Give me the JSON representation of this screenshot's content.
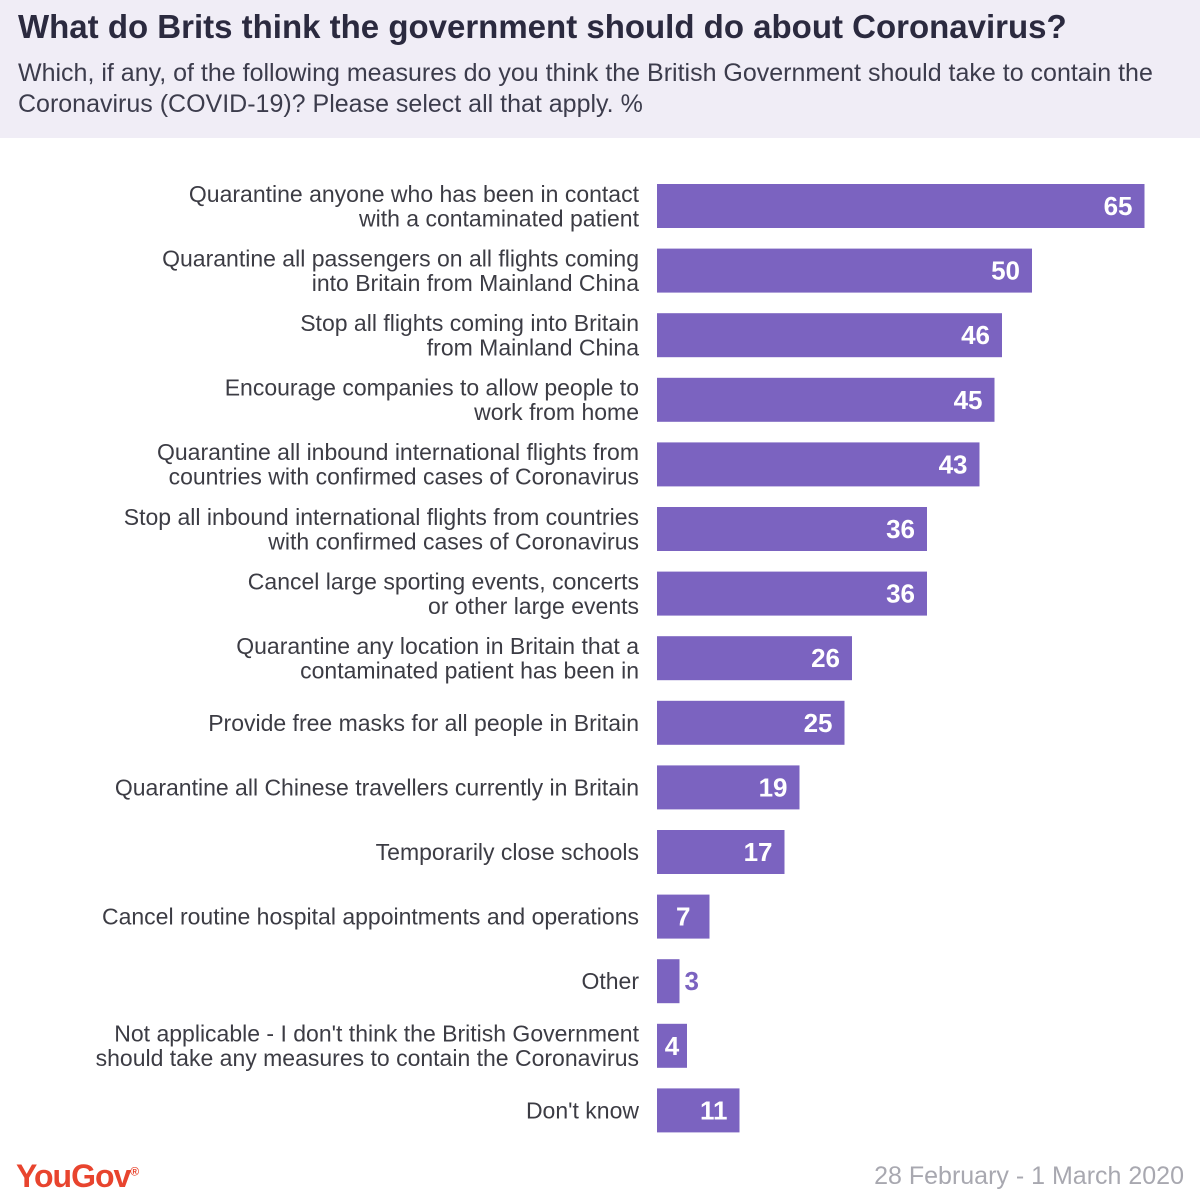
{
  "header": {
    "title": "What do Brits think the government should do about Coronavirus?",
    "subtitle": "Which, if any, of the following measures do you think the British Government should take to contain the Coronavirus (COVID-19)? Please select all that apply. %"
  },
  "footer": {
    "logo": "YouGov",
    "date": "28 February - 1 March 2020"
  },
  "colors": {
    "bar": "#7b63c0",
    "label_inside": "#ffffff",
    "label_outside": "#7b63c0",
    "header_bg": "#f0edf6"
  },
  "chart_data": {
    "type": "bar",
    "orientation": "horizontal",
    "categories": [
      [
        "Quarantine anyone who has been in contact",
        "with a contaminated patient"
      ],
      [
        "Quarantine all passengers on all flights coming",
        "into Britain from Mainland China"
      ],
      [
        "Stop all flights coming into Britain",
        "from Mainland China"
      ],
      [
        "Encourage companies to allow people to",
        "work from home"
      ],
      [
        "Quarantine all inbound international flights from",
        "countries with confirmed cases of Coronavirus"
      ],
      [
        "Stop all inbound international flights from countries",
        "with confirmed cases of Coronavirus"
      ],
      [
        "Cancel large sporting events, concerts",
        "or other large events"
      ],
      [
        "Quarantine any location in Britain that a",
        "contaminated patient has been in"
      ],
      [
        "Provide free masks for all people in Britain"
      ],
      [
        "Quarantine all Chinese travellers currently in Britain"
      ],
      [
        "Temporarily close schools"
      ],
      [
        "Cancel routine hospital appointments and operations"
      ],
      [
        "Other"
      ],
      [
        "Not applicable - I don't think the British Government",
        "should take any measures to contain the Coronavirus"
      ],
      [
        "Don't know"
      ]
    ],
    "values": [
      65,
      50,
      46,
      45,
      43,
      36,
      36,
      26,
      25,
      19,
      17,
      7,
      3,
      4,
      11
    ],
    "xlim": [
      0,
      65
    ],
    "grid": false,
    "legend": "none"
  }
}
